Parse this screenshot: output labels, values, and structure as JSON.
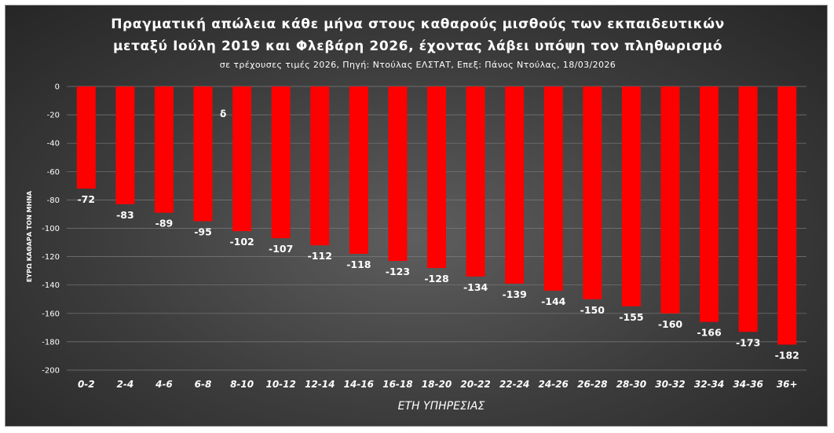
{
  "chart_data": {
    "type": "bar",
    "title_line1": "Πραγματική απώλεια κάθε μήνα στους καθαρούς μισθούς των εκπαιδευτικών",
    "title_line2": "μεταξύ Ιούλη 2019 και Φλεβάρη 2026, έχοντας λάβει υπόψη τον πληθωρισμό",
    "subtitle": "σε τρέχουσες τιμές 2026, Πηγή: Ντούλας ΕΛΣΤΑΤ, Επεξ: Πάνος Ντούλας, 18/03/2026",
    "xlabel": "ΕΤΗ ΥΠΗΡΕΣΙΑΣ",
    "ylabel": "ΕΥΡΩ ΚΑΘΑΡΑ ΤΟΝ ΜΗΝΑ",
    "annotation": "δ",
    "categories": [
      "0-2",
      "2-4",
      "4-6",
      "6-8",
      "8-10",
      "10-12",
      "12-14",
      "14-16",
      "16-18",
      "18-20",
      "20-22",
      "22-24",
      "24-26",
      "26-28",
      "28-30",
      "30-32",
      "32-34",
      "34-36",
      "36+"
    ],
    "values": [
      -72,
      -83,
      -89,
      -95,
      -102,
      -107,
      -112,
      -118,
      -123,
      -128,
      -134,
      -139,
      -144,
      -150,
      -155,
      -160,
      -166,
      -173,
      -182
    ],
    "ylim": [
      -200,
      0
    ],
    "yticks": [
      "0",
      "-20",
      "-40",
      "-60",
      "-80",
      "-100",
      "-120",
      "-140",
      "-160",
      "-180",
      "-200"
    ],
    "grid": true,
    "legend": "none",
    "bar_color": "#ff0000"
  }
}
